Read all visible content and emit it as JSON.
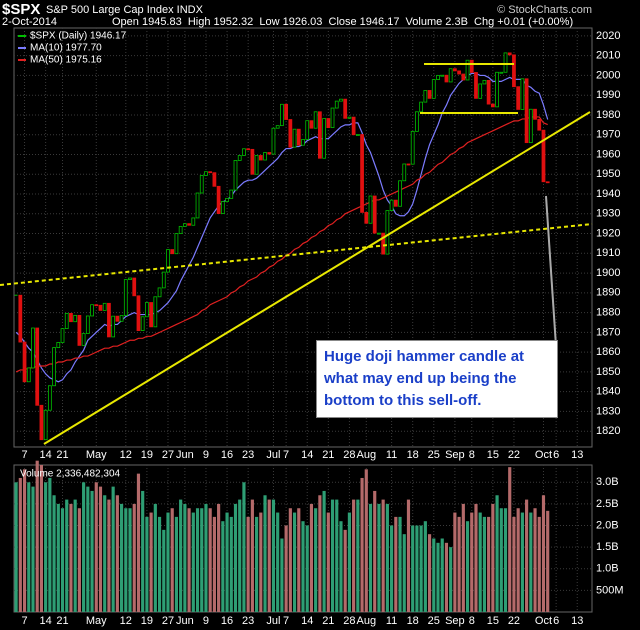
{
  "chart_data": [
    {
      "type": "candlestick",
      "symbol": "$SPX",
      "title": "S&P 500 Large Cap Index INDX",
      "source": "© StockCharts.com",
      "date": "2-Oct-2014",
      "quote": "Open 1945.83  High 1952.32  Low 1926.03  Close 1946.17  Volume 2.3B  Chg +0.01 (+0.00%)",
      "annotation": "Huge doji hammer candle at what may end up being the bottom to this sell-off.",
      "categories": [
        null,
        null,
        "7",
        null,
        null,
        null,
        null,
        "14",
        null,
        null,
        null,
        "21",
        null,
        null,
        null,
        null,
        null,
        null,
        null,
        "May",
        null,
        null,
        null,
        null,
        null,
        null,
        "12",
        null,
        null,
        null,
        null,
        "19",
        null,
        null,
        null,
        null,
        "27",
        null,
        null,
        null,
        "Jun",
        null,
        null,
        null,
        null,
        "9",
        null,
        null,
        null,
        null,
        "16",
        null,
        null,
        null,
        null,
        "23",
        null,
        null,
        null,
        null,
        null,
        "Jul",
        null,
        null,
        "7",
        null,
        null,
        null,
        null,
        "14",
        null,
        null,
        null,
        null,
        "21",
        null,
        null,
        null,
        null,
        "28",
        null,
        null,
        null,
        "Aug",
        null,
        null,
        null,
        null,
        null,
        "11",
        null,
        null,
        null,
        null,
        "18",
        null,
        null,
        null,
        null,
        "25",
        null,
        null,
        null,
        null,
        "Sep",
        null,
        null,
        null,
        "8",
        null,
        null,
        null,
        null,
        "15",
        null,
        null,
        null,
        null,
        "22",
        null,
        null,
        null,
        null,
        null,
        null,
        "Oct",
        null,
        null,
        "6",
        null,
        null,
        null,
        null,
        "13",
        null,
        null,
        null
      ],
      "series": [
        {
          "name": "$SPX (Daily) 1946.17",
          "color": "#00c000",
          "down_color": "#e01010",
          "values": [
            1888.8,
            1865.1,
            1845.0,
            1852.0,
            1872.2,
            1833.1,
            1815.7,
            1830.6,
            1843.0,
            1862.3,
            1864.9,
            1871.9,
            1879.6,
            1875.4,
            1878.6,
            1863.4,
            1869.4,
            1878.3,
            1884.0,
            1883.7,
            1881.1,
            1884.7,
            1867.7,
            1878.2,
            1875.6,
            1878.5,
            1896.7,
            1897.5,
            1888.5,
            1870.9,
            1877.9,
            1885.1,
            1872.8,
            1888.0,
            1892.5,
            1900.5,
            1911.9,
            1909.8,
            1920.0,
            1923.6,
            1925.0,
            1924.2,
            1927.9,
            1940.5,
            1949.4,
            1951.3,
            1950.8,
            1943.9,
            1930.1,
            1936.2,
            1937.8,
            1942.0,
            1957.0,
            1959.5,
            1962.9,
            1962.6,
            1950.0,
            1959.5,
            1957.2,
            1961.0,
            1960.2,
            1973.3,
            1974.6,
            1985.4,
            1977.7,
            1963.7,
            1972.8,
            1964.7,
            1967.6,
            1977.1,
            1973.3,
            1981.6,
            1958.1,
            1978.2,
            1973.6,
            1983.5,
            1987.0,
            1988.0,
            1978.3,
            1978.9,
            1970.0,
            1970.1,
            1930.7,
            1925.2,
            1939.0,
            1920.2,
            1920.2,
            1909.6,
            1931.6,
            1936.9,
            1933.8,
            1946.7,
            1955.2,
            1955.1,
            1971.7,
            1981.6,
            1986.5,
            1992.4,
            1988.4,
            1997.9,
            2000.0,
            2000.1,
            1996.7,
            2003.4,
            2002.3,
            2000.7,
            1997.7,
            2007.7,
            2001.5,
            1988.4,
            1995.7,
            1997.5,
            1985.5,
            1984.1,
            2001.6,
            2001.6,
            2011.4,
            2010.4,
            1994.3,
            1982.8,
            1998.3,
            1966.0,
            1982.9,
            1977.8,
            1972.3,
            1946.2,
            1946.17,
            null,
            null,
            null,
            null,
            null,
            null,
            null,
            null,
            null,
            null
          ]
        },
        {
          "name": "MA(10) 1977.70",
          "color": "#7b7bff",
          "values": [
            1870,
            1868,
            1865,
            1862,
            1860,
            1856,
            1852,
            1849,
            1847,
            1846,
            1845,
            1846,
            1849,
            1851,
            1855,
            1858,
            1861,
            1866,
            1868,
            1870,
            1872,
            1874,
            1873,
            1874,
            1874,
            1876,
            1878,
            1879,
            1880,
            1879,
            1879,
            1879,
            1879,
            1880,
            1881,
            1883,
            1885,
            1888,
            1891,
            1896,
            1900,
            1904,
            1908,
            1913,
            1918,
            1923,
            1928,
            1931,
            1934,
            1936,
            1937,
            1939,
            1942,
            1944,
            1946,
            1947,
            1947,
            1948,
            1950,
            1952,
            1954,
            1956,
            1958,
            1961,
            1963,
            1963,
            1964,
            1964,
            1965,
            1967,
            1968,
            1969,
            1968,
            1968,
            1968,
            1970,
            1972,
            1974,
            1975,
            1975,
            1976,
            1976,
            1971,
            1965,
            1961,
            1955,
            1949,
            1942,
            1937,
            1934,
            1930,
            1929,
            1929,
            1931,
            1935,
            1942,
            1950,
            1958,
            1965,
            1970,
            1975,
            1981,
            1985,
            1990,
            1993,
            1996,
            1998,
            2000,
            2001,
            2001,
            2000,
            2000,
            1999,
            1997,
            1997,
            1997,
            1998,
            1999,
            1998,
            1998,
            1998,
            1995,
            1994,
            1992,
            1991,
            1985,
            1977.7,
            null,
            null,
            null,
            null,
            null,
            null,
            null,
            null,
            null,
            null
          ]
        },
        {
          "name": "MA(50) 1975.16",
          "color": "#e02020",
          "values": [
            1850,
            1851,
            1851,
            1852,
            1852,
            1853,
            1853,
            1853,
            1854,
            1854,
            1855,
            1855,
            1856,
            1856,
            1857,
            1857,
            1858,
            1858,
            1859,
            1860,
            1861,
            1862,
            1862,
            1863,
            1863,
            1864,
            1865,
            1866,
            1866,
            1867,
            1867,
            1868,
            1868,
            1869,
            1870,
            1871,
            1872,
            1873,
            1874,
            1875,
            1876,
            1877,
            1878,
            1879,
            1881,
            1882,
            1884,
            1885,
            1886,
            1887,
            1888,
            1890,
            1891,
            1893,
            1894,
            1896,
            1897,
            1898,
            1900,
            1901,
            1903,
            1904,
            1906,
            1907,
            1909,
            1910,
            1912,
            1913,
            1915,
            1916,
            1918,
            1919,
            1921,
            1922,
            1924,
            1925,
            1927,
            1928,
            1930,
            1931,
            1932,
            1933,
            1934,
            1935,
            1936,
            1937,
            1937,
            1938,
            1939,
            1940,
            1941,
            1942,
            1943,
            1944,
            1945,
            1947,
            1948,
            1950,
            1951,
            1953,
            1955,
            1956,
            1958,
            1960,
            1961,
            1963,
            1964,
            1966,
            1967,
            1968,
            1969,
            1970,
            1971,
            1972,
            1973,
            1974,
            1975,
            1976,
            1977,
            1977,
            1978,
            1978,
            1979,
            1979,
            1979,
            1976,
            1975.16,
            null,
            null,
            null,
            null,
            null,
            null,
            null,
            null,
            null,
            null
          ]
        }
      ],
      "ylim": [
        1812,
        2024
      ],
      "yticks": [
        1820,
        1830,
        1840,
        1850,
        1860,
        1870,
        1880,
        1890,
        1900,
        1910,
        1920,
        1930,
        1940,
        1950,
        1960,
        1970,
        1980,
        1990,
        2000,
        2010,
        2020
      ],
      "grid": true
    },
    {
      "type": "bar",
      "title": "Volume 2,336,482,304",
      "categories": [
        null,
        null,
        "7",
        null,
        null,
        null,
        null,
        "14",
        null,
        null,
        null,
        "21",
        null,
        null,
        null,
        null,
        null,
        null,
        null,
        "May",
        null,
        null,
        null,
        null,
        null,
        null,
        "12",
        null,
        null,
        null,
        null,
        "19",
        null,
        null,
        null,
        null,
        "27",
        null,
        null,
        null,
        "Jun",
        null,
        null,
        null,
        null,
        "9",
        null,
        null,
        null,
        null,
        "16",
        null,
        null,
        null,
        null,
        "23",
        null,
        null,
        null,
        null,
        null,
        "Jul",
        null,
        null,
        "7",
        null,
        null,
        null,
        null,
        "14",
        null,
        null,
        null,
        null,
        "21",
        null,
        null,
        null,
        null,
        "28",
        null,
        null,
        null,
        "Aug",
        null,
        null,
        null,
        null,
        null,
        "11",
        null,
        null,
        null,
        null,
        "18",
        null,
        null,
        null,
        null,
        "25",
        null,
        null,
        null,
        null,
        "Sep",
        null,
        null,
        null,
        "8",
        null,
        null,
        null,
        null,
        "15",
        null,
        null,
        null,
        null,
        "22",
        null,
        null,
        null,
        null,
        null,
        null,
        "Oct",
        null,
        null,
        "6",
        null,
        null,
        null,
        null,
        "13",
        null,
        null,
        null
      ],
      "values": [
        3.0,
        3.1,
        3.3,
        3.0,
        2.9,
        3.5,
        3.4,
        3.0,
        3.1,
        2.7,
        2.5,
        2.4,
        2.6,
        2.5,
        2.6,
        2.4,
        3.0,
        2.9,
        2.8,
        3.0,
        2.9,
        2.7,
        2.6,
        2.9,
        2.7,
        2.5,
        2.4,
        2.4,
        2.5,
        3.2,
        2.8,
        2.2,
        2.3,
        2.5,
        2.2,
        1.9,
        2.3,
        2.4,
        2.2,
        2.6,
        2.5,
        2.4,
        2.3,
        2.4,
        2.4,
        2.5,
        2.4,
        2.2,
        2.5,
        2.1,
        2.3,
        2.2,
        2.5,
        2.6,
        3.0,
        2.2,
        2.6,
        2.2,
        2.3,
        2.7,
        2.6,
        2.6,
        2.3,
        1.7,
        2.0,
        2.4,
        2.3,
        2.4,
        2.1,
        2.0,
        2.5,
        2.4,
        2.7,
        2.8,
        2.3,
        2.6,
        2.6,
        2.1,
        1.9,
        2.3,
        2.6,
        2.6,
        3.1,
        3.3,
        2.5,
        2.8,
        2.5,
        2.6,
        2.5,
        2.0,
        2.2,
        2.2,
        1.8,
        2.6,
        2.0,
        2.0,
        2.0,
        2.1,
        1.8,
        1.7,
        1.6,
        1.7,
        1.6,
        1.5,
        2.3,
        2.2,
        2.5,
        2.1,
        2.3,
        2.5,
        2.3,
        2.2,
        2.2,
        2.5,
        2.7,
        2.4,
        2.4,
        3.35,
        2.2,
        2.4,
        2.3,
        2.6,
        2.3,
        2.4,
        2.2,
        2.7,
        2.34,
        null,
        null,
        null,
        null,
        null,
        null,
        null,
        null,
        null,
        null
      ],
      "colors": {
        "up": "#2e9e74",
        "down": "#b46a6a"
      },
      "ylim": [
        0,
        3.4
      ],
      "yticks": [
        {
          "value": 0.5,
          "label": "500M"
        },
        {
          "value": 1,
          "label": "1.0B"
        },
        {
          "value": 1.5,
          "label": "1.5B"
        },
        {
          "value": 2,
          "label": "2.0B"
        },
        {
          "value": 2.5,
          "label": "2.5B"
        },
        {
          "value": 3,
          "label": "3.0B"
        }
      ],
      "grid": true
    }
  ]
}
